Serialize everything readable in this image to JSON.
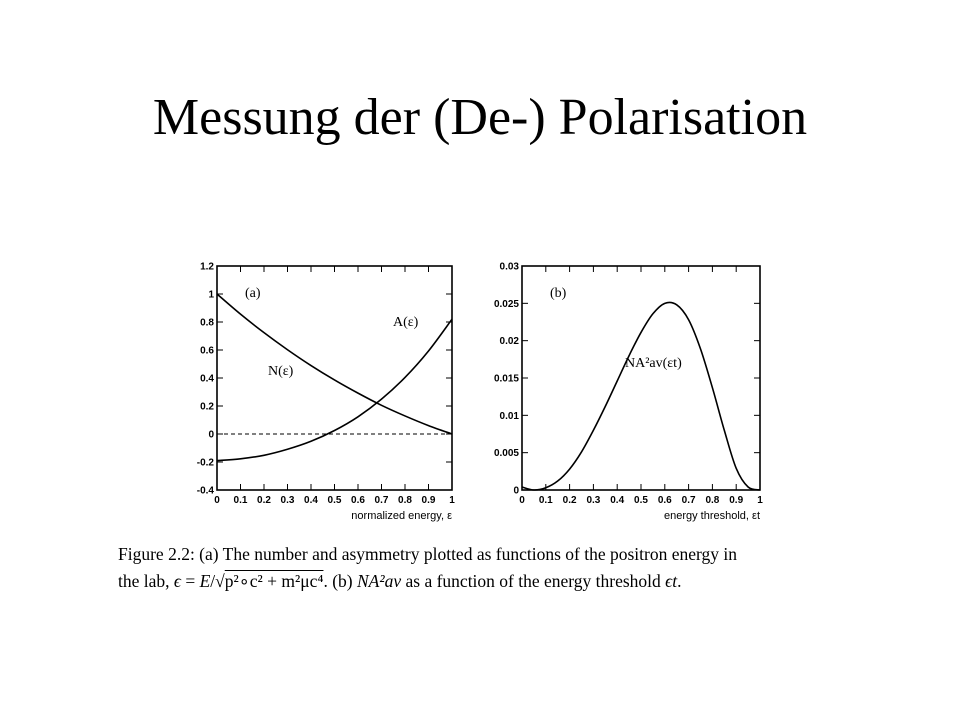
{
  "slide": {
    "title": "Messung der (De-) Polarisation"
  },
  "caption": {
    "line1": "Figure 2.2:  (a)  The number and asymmetry plotted as functions of the positron energy in",
    "line2_prefix": "the lab, ",
    "line2_formula_eps": "ϵ",
    "line2_formula_eq": " = ",
    "line2_formula_E": "E",
    "line2_formula_slash": "/√",
    "line2_formula_root": "p²∘c² + m²μc⁴",
    "line2_mid": ".  (b)  ",
    "line2_NA": "NA²av",
    "line2_suffix": "  as a function of the energy threshold  ",
    "line2_eps_t": "ϵt",
    "line2_end": "."
  },
  "chart_data": [
    {
      "type": "line",
      "panel_label": "(a)",
      "xlabel": "normalized energy, ε",
      "xlim": [
        0,
        1
      ],
      "ylim": [
        -0.4,
        1.2
      ],
      "xticks": [
        "0",
        "0.1",
        "0.2",
        "0.3",
        "0.4",
        "0.5",
        "0.6",
        "0.7",
        "0.8",
        "0.9",
        "1"
      ],
      "yticks": [
        "1.2",
        "1",
        "0.8",
        "0.6",
        "0.4",
        "0.2",
        "0",
        "-0.2",
        "-0.4"
      ],
      "ytick_values": [
        1.2,
        1,
        0.8,
        0.6,
        0.4,
        0.2,
        0,
        -0.2,
        -0.4
      ],
      "reference_line": {
        "y": 0,
        "style": "dashed"
      },
      "series": [
        {
          "name": "N(ε)",
          "x": [
            0,
            0.1,
            0.2,
            0.3,
            0.4,
            0.5,
            0.6,
            0.7,
            0.8,
            0.9,
            1.0
          ],
          "y": [
            1.0,
            0.856,
            0.724,
            0.602,
            0.489,
            0.386,
            0.292,
            0.205,
            0.129,
            0.06,
            0.0
          ]
        },
        {
          "name": "A(ε)",
          "x": [
            0,
            0.1,
            0.2,
            0.3,
            0.4,
            0.5,
            0.6,
            0.7,
            0.8,
            0.9,
            1.0
          ],
          "y": [
            -0.19,
            -0.177,
            -0.152,
            -0.109,
            -0.052,
            0.025,
            0.123,
            0.249,
            0.404,
            0.593,
            0.82
          ]
        }
      ]
    },
    {
      "type": "line",
      "panel_label": "(b)",
      "xlabel": "energy threshold, εt",
      "xlim": [
        0,
        1
      ],
      "ylim": [
        0,
        0.03
      ],
      "xticks": [
        "0",
        "0.1",
        "0.2",
        "0.3",
        "0.4",
        "0.5",
        "0.6",
        "0.7",
        "0.8",
        "0.9",
        "1"
      ],
      "yticks": [
        "0.03",
        "0.025",
        "0.02",
        "0.015",
        "0.01",
        "0.005",
        "0"
      ],
      "ytick_values": [
        0.03,
        0.025,
        0.02,
        0.015,
        0.01,
        0.005,
        0
      ],
      "series": [
        {
          "name": "NA²av(εt)",
          "x": [
            0,
            0.05,
            0.1,
            0.15,
            0.2,
            0.25,
            0.3,
            0.35,
            0.4,
            0.45,
            0.5,
            0.55,
            0.6,
            0.65,
            0.7,
            0.75,
            0.8,
            0.85,
            0.9,
            0.95,
            1.0
          ],
          "y": [
            0.0004,
            0.0,
            0.0003,
            0.0012,
            0.0028,
            0.0051,
            0.008,
            0.0112,
            0.0146,
            0.018,
            0.0211,
            0.0236,
            0.025,
            0.0248,
            0.0228,
            0.0189,
            0.0137,
            0.008,
            0.0029,
            0.0004,
            0.0
          ]
        }
      ]
    }
  ]
}
